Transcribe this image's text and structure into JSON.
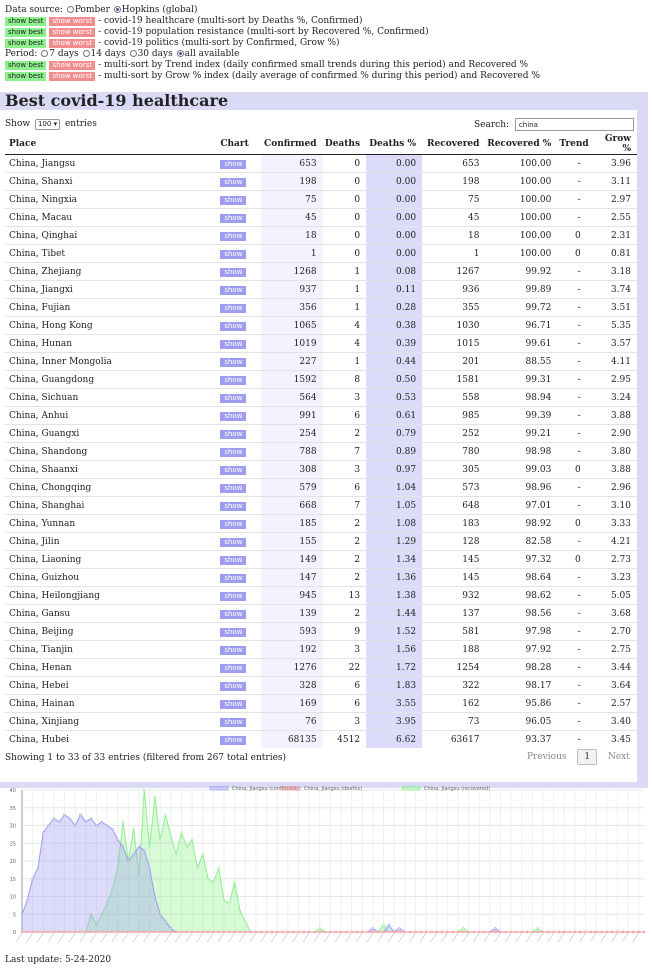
{
  "controls": {
    "data_source_label": "Data source:",
    "source_options": [
      {
        "label": "Pomber",
        "selected": false
      },
      {
        "label": "Hopkins (global)",
        "selected": true
      }
    ],
    "show_best_label": "show best",
    "show_worst_label": "show worst",
    "sort_rows_1": [
      {
        "text": "- covid-19 healthcare (multi-sort by Deaths %, Confirmed)"
      },
      {
        "text": "- covid-19 population resistance (multi-sort by Recovered %, Confirmed)"
      },
      {
        "text": "- covid-19 politics (multi-sort by Confirmed, Grow %)"
      }
    ],
    "period_label": "Period:",
    "period_options": [
      {
        "label": "7 days",
        "selected": false
      },
      {
        "label": "14 days",
        "selected": false
      },
      {
        "label": "30 days",
        "selected": false
      },
      {
        "label": "all available",
        "selected": true
      }
    ],
    "sort_rows_2": [
      {
        "text": "- multi-sort by Trend index (daily confirmed small trends during this period) and Recovered %"
      },
      {
        "text": "- multi-sort by Grow % index (daily average of confirmed % during this period) and Recovered %"
      }
    ]
  },
  "page_title": "Best covid-19 healthcare",
  "length_control": {
    "prefix": "Show",
    "value": "100",
    "suffix": "entries"
  },
  "search": {
    "label": "Search:",
    "value": "china"
  },
  "table": {
    "headers": {
      "place": "Place",
      "chart": "Chart",
      "confirmed": "Confirmed",
      "deaths": "Deaths",
      "deaths_pct": "Deaths %",
      "recovered": "Recovered",
      "recovered_pct": "Recovered %",
      "trend": "Trend",
      "grow_pct": "Grow %"
    },
    "show_label": "show",
    "rows": [
      [
        "China, Jiangsu",
        "653",
        "0",
        "0.00",
        "653",
        "100.00",
        "-",
        "3.96"
      ],
      [
        "China, Shanxi",
        "198",
        "0",
        "0.00",
        "198",
        "100.00",
        "-",
        "3.11"
      ],
      [
        "China, Ningxia",
        "75",
        "0",
        "0.00",
        "75",
        "100.00",
        "-",
        "2.97"
      ],
      [
        "China, Macau",
        "45",
        "0",
        "0.00",
        "45",
        "100.00",
        "-",
        "2.55"
      ],
      [
        "China, Qinghai",
        "18",
        "0",
        "0.00",
        "18",
        "100.00",
        "0",
        "2.31"
      ],
      [
        "China, Tibet",
        "1",
        "0",
        "0.00",
        "1",
        "100.00",
        "0",
        "0.81"
      ],
      [
        "China, Zhejiang",
        "1268",
        "1",
        "0.08",
        "1267",
        "99.92",
        "-",
        "3.18"
      ],
      [
        "China, Jiangxi",
        "937",
        "1",
        "0.11",
        "936",
        "99.89",
        "-",
        "3.74"
      ],
      [
        "China, Fujian",
        "356",
        "1",
        "0.28",
        "355",
        "99.72",
        "-",
        "3.51"
      ],
      [
        "China, Hong Kong",
        "1065",
        "4",
        "0.38",
        "1030",
        "96.71",
        "-",
        "5.35"
      ],
      [
        "China, Hunan",
        "1019",
        "4",
        "0.39",
        "1015",
        "99.61",
        "-",
        "3.57"
      ],
      [
        "China, Inner Mongolia",
        "227",
        "1",
        "0.44",
        "201",
        "88.55",
        "-",
        "4.11"
      ],
      [
        "China, Guangdong",
        "1592",
        "8",
        "0.50",
        "1581",
        "99.31",
        "-",
        "2.95"
      ],
      [
        "China, Sichuan",
        "564",
        "3",
        "0.53",
        "558",
        "98.94",
        "-",
        "3.24"
      ],
      [
        "China, Anhui",
        "991",
        "6",
        "0.61",
        "985",
        "99.39",
        "-",
        "3.88"
      ],
      [
        "China, Guangxi",
        "254",
        "2",
        "0.79",
        "252",
        "99.21",
        "-",
        "2.90"
      ],
      [
        "China, Shandong",
        "788",
        "7",
        "0.89",
        "780",
        "98.98",
        "-",
        "3.80"
      ],
      [
        "China, Shaanxi",
        "308",
        "3",
        "0.97",
        "305",
        "99.03",
        "0",
        "3.88"
      ],
      [
        "China, Chongqing",
        "579",
        "6",
        "1.04",
        "573",
        "98.96",
        "-",
        "2.96"
      ],
      [
        "China, Shanghai",
        "668",
        "7",
        "1.05",
        "648",
        "97.01",
        "-",
        "3.10"
      ],
      [
        "China, Yunnan",
        "185",
        "2",
        "1.08",
        "183",
        "98.92",
        "0",
        "3.33"
      ],
      [
        "China, Jilin",
        "155",
        "2",
        "1.29",
        "128",
        "82.58",
        "-",
        "4.21"
      ],
      [
        "China, Liaoning",
        "149",
        "2",
        "1.34",
        "145",
        "97.32",
        "0",
        "2.73"
      ],
      [
        "China, Guizhou",
        "147",
        "2",
        "1.36",
        "145",
        "98.64",
        "-",
        "3.23"
      ],
      [
        "China, Heilongjiang",
        "945",
        "13",
        "1.38",
        "932",
        "98.62",
        "-",
        "5.05"
      ],
      [
        "China, Gansu",
        "139",
        "2",
        "1.44",
        "137",
        "98.56",
        "-",
        "3.68"
      ],
      [
        "China, Beijing",
        "593",
        "9",
        "1.52",
        "581",
        "97.98",
        "-",
        "2.70"
      ],
      [
        "China, Tianjin",
        "192",
        "3",
        "1.56",
        "188",
        "97.92",
        "-",
        "2.75"
      ],
      [
        "China, Henan",
        "1276",
        "22",
        "1.72",
        "1254",
        "98.28",
        "-",
        "3.44"
      ],
      [
        "China, Hebei",
        "328",
        "6",
        "1.83",
        "322",
        "98.17",
        "-",
        "3.64"
      ],
      [
        "China, Hainan",
        "169",
        "6",
        "3.55",
        "162",
        "95.86",
        "-",
        "2.57"
      ],
      [
        "China, Xinjiang",
        "76",
        "3",
        "3.95",
        "73",
        "96.05",
        "-",
        "3.40"
      ],
      [
        "China, Hubei",
        "68135",
        "4512",
        "6.62",
        "63617",
        "93.37",
        "-",
        "3.45"
      ]
    ]
  },
  "table_info": "Showing 1 to 33 of 33 entries (filtered from 267 total entries)",
  "pagination": {
    "previous": "Previous",
    "page": "1",
    "next": "Next"
  },
  "chart_data": {
    "type": "area",
    "series": [
      {
        "name": "China, Jiangsu (confirmed)",
        "color": "#9b9bf0",
        "values": [
          5,
          9,
          15,
          18,
          28,
          30,
          32,
          31,
          33,
          32,
          30,
          33,
          31,
          32,
          30,
          31,
          30,
          29,
          26,
          24,
          20,
          22,
          24,
          23,
          18,
          10,
          5,
          3,
          1,
          0,
          0,
          0,
          0,
          0,
          0,
          0,
          0,
          0,
          0,
          0,
          0,
          0,
          0,
          0,
          0,
          0,
          0,
          0,
          0,
          0,
          0,
          0,
          0,
          0,
          0,
          0,
          0,
          0,
          0,
          0,
          0,
          0,
          0,
          0,
          0,
          0,
          1,
          0,
          0,
          2,
          0,
          1,
          0,
          0,
          0,
          0,
          0,
          0,
          0,
          0,
          0,
          0,
          0,
          0,
          0,
          0,
          0,
          0,
          0,
          1,
          0,
          0,
          0,
          0,
          0,
          0,
          0,
          0,
          0,
          0,
          0,
          0,
          0,
          0,
          0,
          0,
          0,
          0,
          0,
          0,
          0,
          0,
          0,
          0,
          0,
          0,
          0,
          0
        ]
      },
      {
        "name": "China, Jiangsu (deaths)",
        "color": "#f28d8d",
        "values": [
          0,
          0,
          0,
          0,
          0,
          0,
          0,
          0,
          0,
          0,
          0,
          0,
          0,
          0,
          0,
          0,
          0,
          0,
          0,
          0,
          0,
          0,
          0,
          0,
          0,
          0,
          0,
          0,
          0,
          0,
          0,
          0,
          0,
          0,
          0,
          0,
          0,
          0,
          0,
          0,
          0,
          0,
          0,
          0,
          0,
          0,
          0,
          0,
          0,
          0,
          0,
          0,
          0,
          0,
          0,
          0,
          0,
          0,
          0,
          0,
          0,
          0,
          0,
          0,
          0,
          0,
          0,
          0,
          0,
          0,
          0,
          0,
          0,
          0,
          0,
          0,
          0,
          0,
          0,
          0,
          0,
          0,
          0,
          0,
          0,
          0,
          0,
          0,
          0,
          0,
          0,
          0,
          0,
          0,
          0,
          0,
          0,
          0,
          0,
          0,
          0,
          0,
          0,
          0,
          0,
          0,
          0,
          0,
          0,
          0,
          0,
          0,
          0,
          0,
          0,
          0,
          0,
          0
        ]
      },
      {
        "name": "China, Jiangsu (recovered)",
        "color": "#8cf08c",
        "values": [
          0,
          0,
          0,
          0,
          0,
          0,
          0,
          0,
          0,
          0,
          0,
          0,
          0,
          5,
          2,
          5,
          8,
          12,
          18,
          31,
          20,
          29,
          16,
          40,
          24,
          38,
          26,
          33,
          27,
          22,
          28,
          24,
          26,
          18,
          22,
          15,
          14,
          18,
          9,
          8,
          14,
          6,
          3,
          0,
          0,
          0,
          0,
          0,
          0,
          0,
          0,
          0,
          0,
          0,
          0,
          0,
          1,
          0,
          0,
          0,
          0,
          0,
          0,
          0,
          0,
          0,
          0,
          0,
          2,
          0,
          0,
          0,
          0,
          0,
          0,
          0,
          0,
          0,
          0,
          0,
          0,
          0,
          0,
          1,
          0,
          0,
          0,
          0,
          0,
          0,
          0,
          0,
          0,
          0,
          0,
          0,
          0,
          1,
          0,
          0,
          0,
          0,
          0,
          0,
          0,
          0,
          0,
          0,
          0,
          0,
          0,
          0,
          0,
          0,
          0,
          0,
          0
        ]
      }
    ],
    "ylim": [
      0,
      40
    ],
    "y_ticks": [
      0,
      5,
      10,
      15,
      20,
      25,
      30,
      35,
      40
    ],
    "grid": true,
    "legend": "top-center"
  },
  "last_update": "Last update: 5-24-2020"
}
